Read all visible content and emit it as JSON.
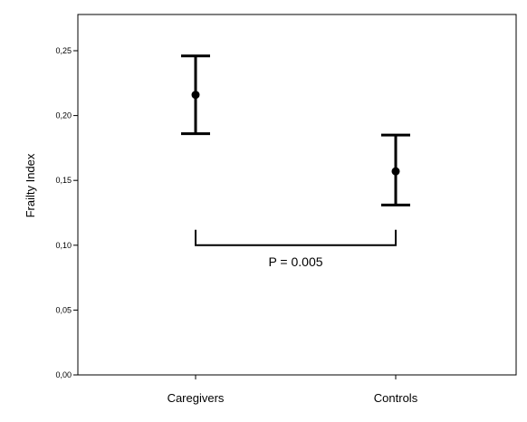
{
  "chart_data": {
    "type": "errorbar",
    "title": "",
    "xlabel": "",
    "ylabel": "Frailty Index",
    "ylim": [
      0.0,
      0.25
    ],
    "yticks": [
      0.0,
      0.05,
      0.1,
      0.15,
      0.2,
      0.25
    ],
    "ytick_labels": [
      "0,00",
      "0,05",
      "0,10",
      "0,15",
      "0,20",
      "0,25"
    ],
    "categories": [
      "Caregivers",
      "Controls"
    ],
    "means": [
      0.216,
      0.157
    ],
    "lower": [
      0.186,
      0.131
    ],
    "upper": [
      0.246,
      0.185
    ],
    "grid": false,
    "annotation": {
      "text": "P = 0.005",
      "between": [
        "Caregivers",
        "Controls"
      ],
      "y": 0.1
    }
  }
}
